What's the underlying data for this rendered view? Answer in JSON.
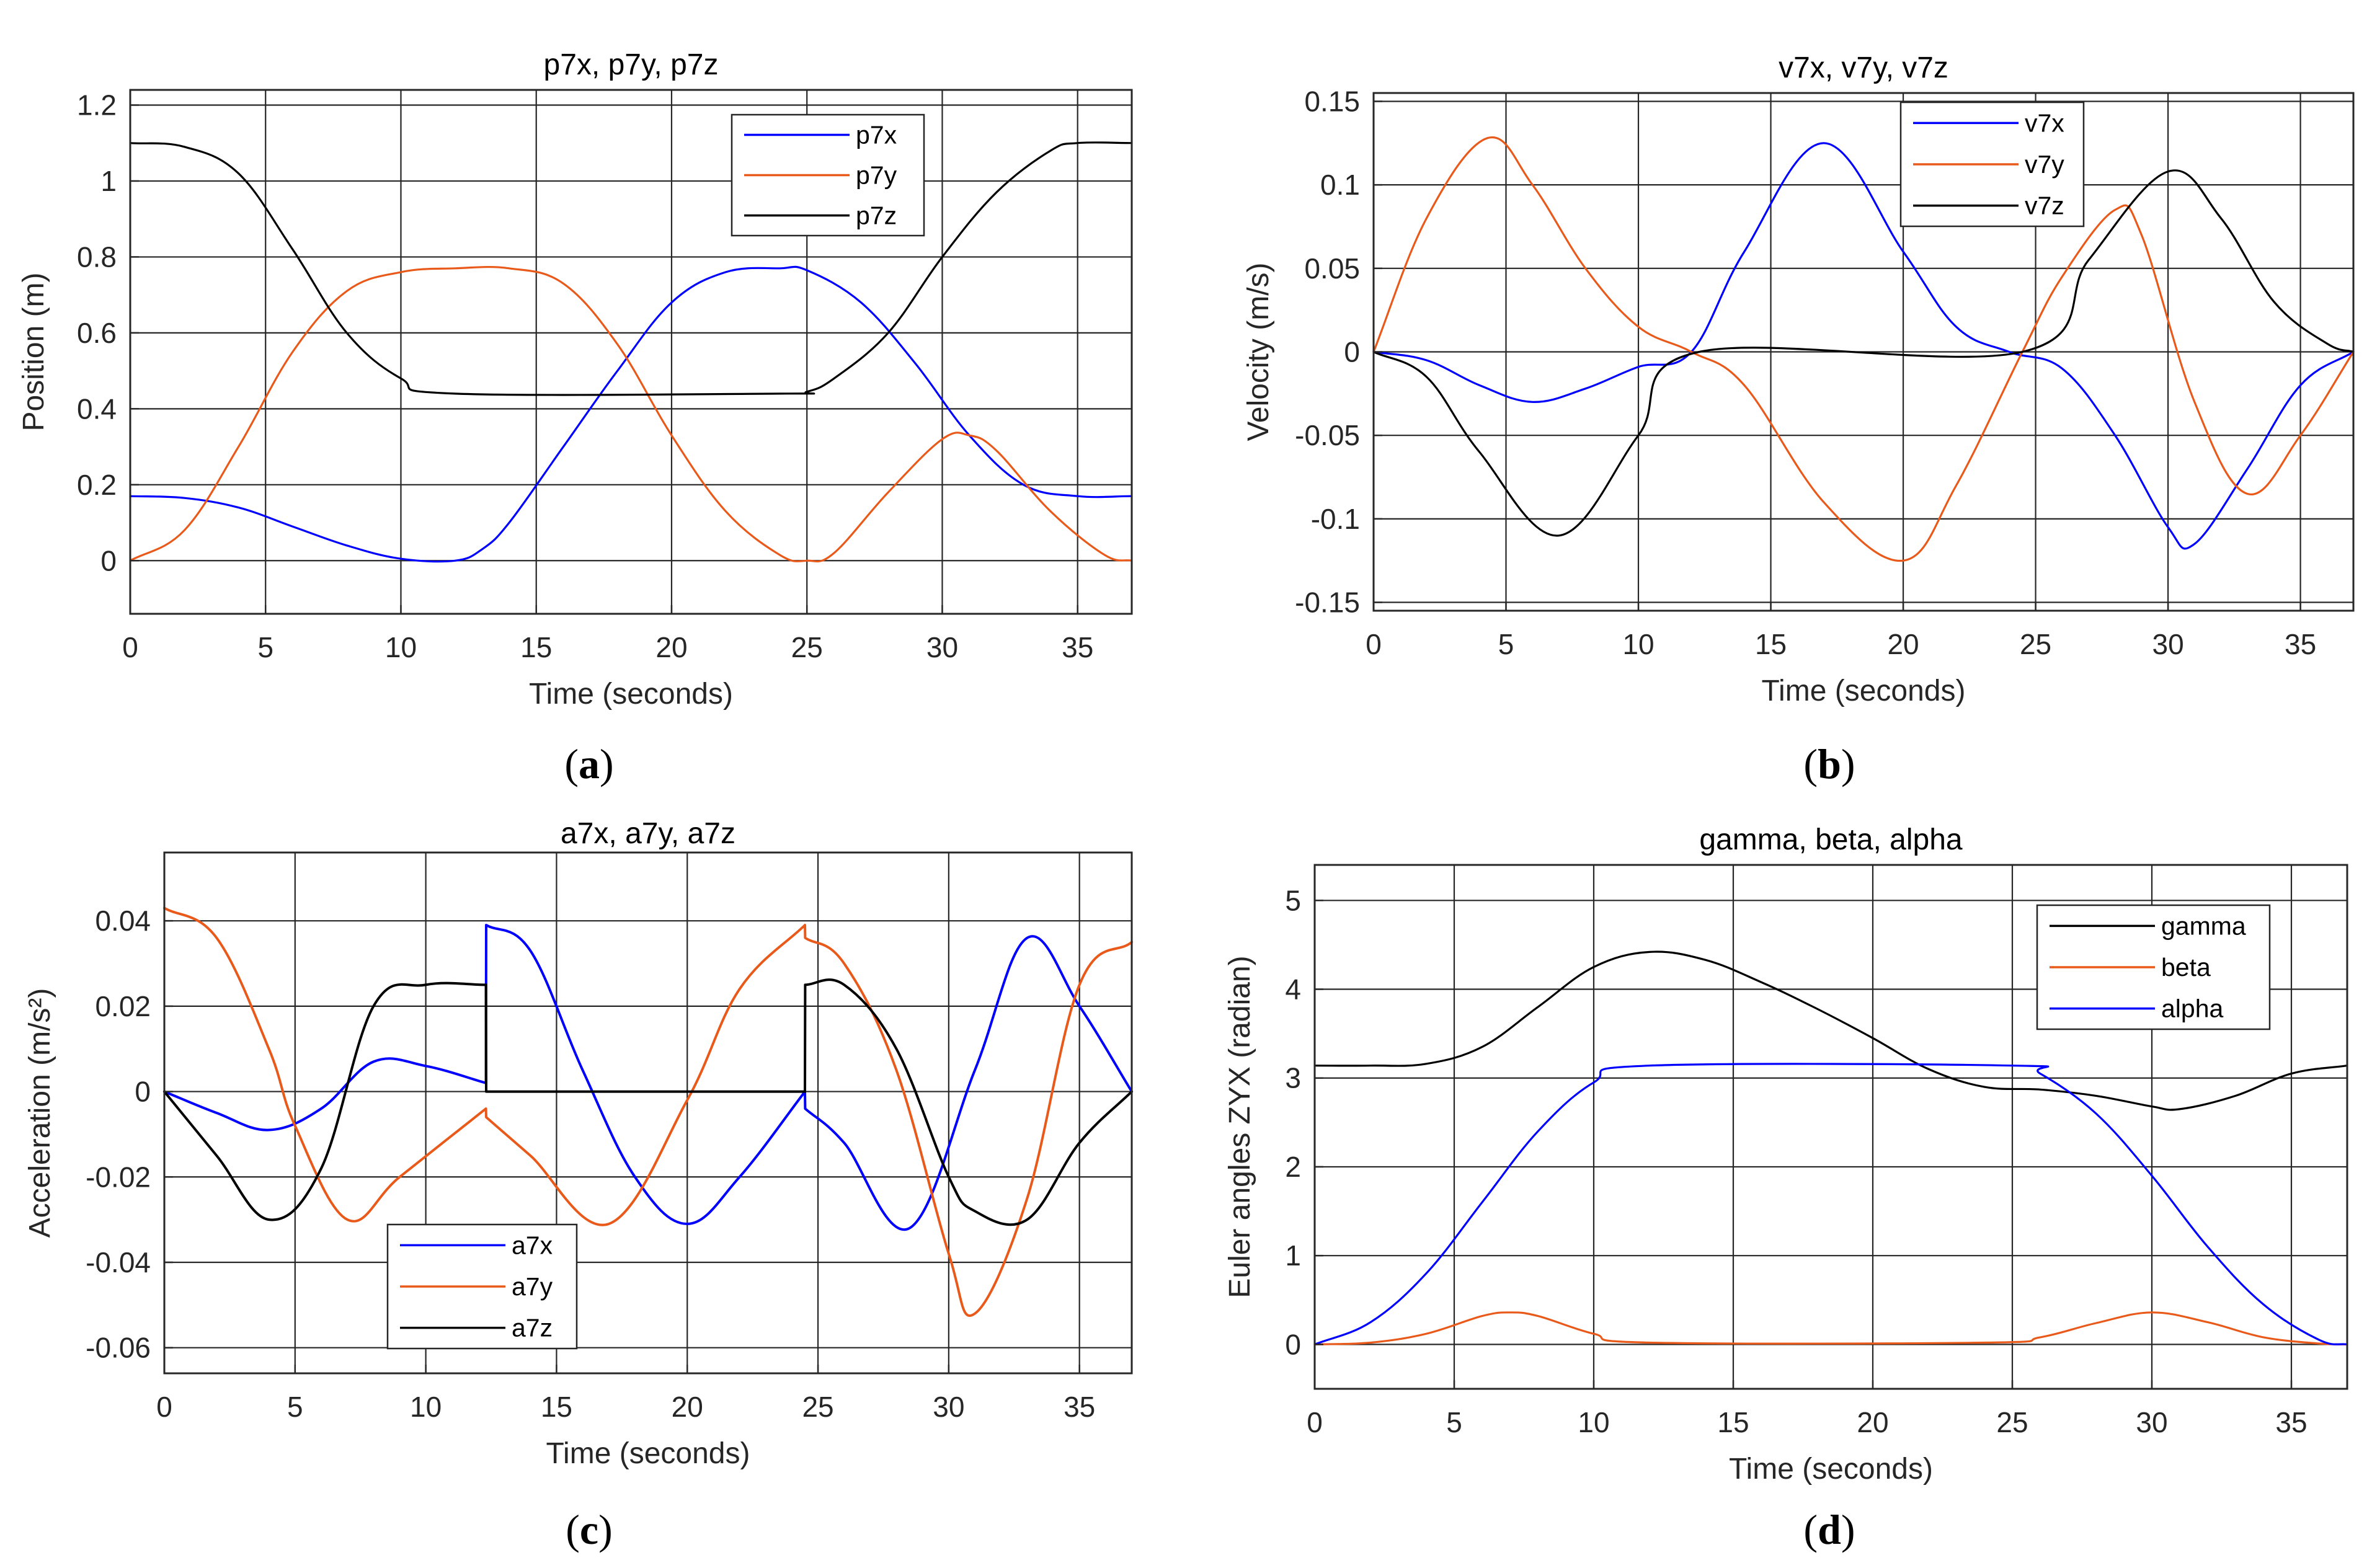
{
  "chart_data": [
    {
      "id": "a",
      "type": "line",
      "title": "p7x, p7y, p7z",
      "xlabel": "Time (seconds)",
      "ylabel": "Position (m)",
      "xlim": [
        0,
        37
      ],
      "ylim": [
        -0.14,
        1.24
      ],
      "xticks": [
        0,
        5,
        10,
        15,
        20,
        25,
        30,
        35
      ],
      "xtick_labels": [
        "0",
        "5",
        "10",
        "15",
        "20",
        "25",
        "30",
        "35"
      ],
      "yticks": [
        0,
        0.2,
        0.4,
        0.6,
        0.8,
        1,
        1.2
      ],
      "ytick_labels": [
        "0",
        "0.2",
        "0.4",
        "0.6",
        "0.8",
        "1",
        "1.2"
      ],
      "grid": true,
      "legend_position": "top-right",
      "caption": "a",
      "series": [
        {
          "name": "p7x",
          "color": "#0000ff",
          "x": [
            0,
            2,
            4,
            6,
            8,
            10,
            12,
            13,
            14,
            16,
            18,
            20,
            22,
            24,
            25,
            27,
            29,
            31,
            33,
            35,
            37
          ],
          "y": [
            0.17,
            0.165,
            0.14,
            0.09,
            0.04,
            0.005,
            0,
            0.03,
            0.1,
            0.3,
            0.5,
            0.68,
            0.76,
            0.77,
            0.765,
            0.68,
            0.52,
            0.33,
            0.2,
            0.17,
            0.17
          ]
        },
        {
          "name": "p7y",
          "color": "#e8591a",
          "x": [
            0,
            2,
            4,
            6,
            8,
            10,
            12,
            14,
            16,
            18,
            20,
            22,
            24,
            25,
            26,
            28,
            30,
            31,
            32,
            34,
            36,
            37
          ],
          "y": [
            0,
            0.08,
            0.3,
            0.55,
            0.71,
            0.76,
            0.77,
            0.77,
            0.73,
            0.57,
            0.33,
            0.13,
            0.015,
            0,
            0.02,
            0.18,
            0.32,
            0.33,
            0.29,
            0.13,
            0.015,
            0
          ]
        },
        {
          "name": "p7z",
          "color": "#000000",
          "x": [
            0,
            2,
            4,
            6,
            8,
            10,
            12,
            24,
            25,
            26,
            28,
            30,
            32,
            34,
            35,
            37
          ],
          "y": [
            1.1,
            1.09,
            1.02,
            0.82,
            0.6,
            0.48,
            0.44,
            0.44,
            0.445,
            0.48,
            0.6,
            0.8,
            0.97,
            1.08,
            1.1,
            1.1
          ]
        }
      ]
    },
    {
      "id": "b",
      "type": "line",
      "title": "v7x, v7y, v7z",
      "xlabel": "Time (seconds)",
      "ylabel": "Velocity (m/s)",
      "xlim": [
        0,
        37
      ],
      "ylim": [
        -0.155,
        0.155
      ],
      "xticks": [
        0,
        5,
        10,
        15,
        20,
        25,
        30,
        35
      ],
      "xtick_labels": [
        "0",
        "5",
        "10",
        "15",
        "20",
        "25",
        "30",
        "35"
      ],
      "yticks": [
        -0.15,
        -0.1,
        -0.05,
        0,
        0.05,
        0.1,
        0.15
      ],
      "ytick_labels": [
        "-0.15",
        "-0.1",
        "-0.05",
        "0",
        "0.05",
        "0.1",
        "0.15"
      ],
      "grid": true,
      "legend_position": "top",
      "caption": "b",
      "series": [
        {
          "name": "v7x",
          "color": "#0000ff",
          "x": [
            0,
            2,
            4,
            6,
            8,
            10,
            12,
            14,
            17,
            20,
            22,
            24,
            26,
            28,
            30,
            31,
            33,
            35,
            37
          ],
          "y": [
            0,
            -0.005,
            -0.02,
            -0.03,
            -0.022,
            -0.009,
            0,
            0.06,
            0.125,
            0.06,
            0.015,
            0,
            -0.01,
            -0.05,
            -0.105,
            -0.115,
            -0.07,
            -0.02,
            0
          ]
        },
        {
          "name": "v7y",
          "color": "#e8591a",
          "x": [
            0,
            2,
            4.3,
            6,
            8,
            10,
            12,
            14,
            17,
            20,
            22,
            24.5,
            26,
            28,
            29,
            31,
            33,
            35,
            37
          ],
          "y": [
            0,
            0.08,
            0.128,
            0.1,
            0.05,
            0.015,
            0,
            -0.02,
            -0.09,
            -0.125,
            -0.08,
            0,
            0.045,
            0.085,
            0.07,
            -0.03,
            -0.085,
            -0.05,
            0
          ]
        },
        {
          "name": "v7z",
          "color": "#000000",
          "x": [
            0,
            2,
            4,
            7,
            10,
            12.3,
            24.5,
            27,
            30,
            32,
            34,
            36,
            37
          ],
          "y": [
            0,
            -0.015,
            -0.06,
            -0.11,
            -0.05,
            0,
            0,
            0.055,
            0.108,
            0.08,
            0.03,
            0.005,
            0
          ]
        }
      ]
    },
    {
      "id": "c",
      "type": "line",
      "title": "a7x, a7y, a7z",
      "xlabel": "Time (seconds)",
      "ylabel": "Acceleration (m/s²)",
      "xlim": [
        0,
        37
      ],
      "ylim": [
        -0.066,
        0.056
      ],
      "xticks": [
        0,
        5,
        10,
        15,
        20,
        25,
        30,
        35
      ],
      "xtick_labels": [
        "0",
        "5",
        "10",
        "15",
        "20",
        "25",
        "30",
        "35"
      ],
      "yticks": [
        -0.06,
        -0.04,
        -0.02,
        0,
        0.02,
        0.04
      ],
      "ytick_labels": [
        "-0.06",
        "-0.04",
        "-0.02",
        "0",
        "0.02",
        "0.04"
      ],
      "grid": true,
      "legend_position": "bottom-left",
      "caption": "c",
      "series": [
        {
          "name": "a7x",
          "color": "#0000ff",
          "x": [
            0,
            2,
            4,
            6,
            8,
            10,
            12.3,
            12.31,
            14,
            16,
            18,
            20,
            22,
            24.5,
            24.51,
            26,
            28.5,
            31,
            33,
            35,
            37
          ],
          "y": [
            0,
            -0.005,
            -0.009,
            -0.004,
            0.007,
            0.006,
            0.002,
            0.039,
            0.033,
            0.005,
            -0.02,
            -0.031,
            -0.02,
            0,
            -0.004,
            -0.012,
            -0.032,
            0.005,
            0.036,
            0.02,
            0
          ]
        },
        {
          "name": "a7y",
          "color": "#e8591a",
          "x": [
            0,
            2,
            4,
            5,
            7,
            9,
            12.3,
            12.31,
            14,
            17,
            20,
            22,
            24.5,
            24.51,
            26,
            28,
            30,
            31,
            33,
            35,
            37
          ],
          "y": [
            0.043,
            0.036,
            0.01,
            -0.008,
            -0.03,
            -0.02,
            -0.004,
            -0.006,
            -0.015,
            -0.031,
            -0.002,
            0.024,
            0.039,
            0.036,
            0.03,
            0.005,
            -0.038,
            -0.052,
            -0.025,
            0.025,
            0.035
          ]
        },
        {
          "name": "a7z",
          "color": "#000000",
          "x": [
            0,
            2,
            4,
            6,
            8,
            10,
            12.3,
            12.31,
            24.5,
            24.51,
            26,
            28,
            30,
            31,
            33,
            35,
            37
          ],
          "y": [
            0,
            -0.015,
            -0.03,
            -0.018,
            0.02,
            0.025,
            0.025,
            0,
            0,
            0.025,
            0.025,
            0.01,
            -0.02,
            -0.028,
            -0.03,
            -0.012,
            0
          ]
        }
      ]
    },
    {
      "id": "d",
      "type": "line",
      "title": "gamma, beta, alpha",
      "xlabel": "Time (seconds)",
      "ylabel": "Euler angles ZYX (radian)",
      "xlim": [
        0,
        37
      ],
      "ylim": [
        -0.5,
        5.4
      ],
      "xticks": [
        0,
        5,
        10,
        15,
        20,
        25,
        30,
        35
      ],
      "xtick_labels": [
        "0",
        "5",
        "10",
        "15",
        "20",
        "25",
        "30",
        "35"
      ],
      "yticks": [
        0,
        1,
        2,
        3,
        4,
        5
      ],
      "ytick_labels": [
        "0",
        "1",
        "2",
        "3",
        "4",
        "5"
      ],
      "grid": true,
      "legend_position": "top-right",
      "caption": "d",
      "series": [
        {
          "name": "gamma",
          "color": "#000000",
          "x": [
            0,
            2,
            4,
            6,
            8,
            10,
            12,
            14,
            16,
            18,
            20,
            22,
            24,
            26,
            28,
            30,
            31,
            33,
            35,
            37
          ],
          "y": [
            3.14,
            3.14,
            3.16,
            3.35,
            3.8,
            4.25,
            4.42,
            4.33,
            4.08,
            3.78,
            3.45,
            3.1,
            2.9,
            2.87,
            2.8,
            2.68,
            2.65,
            2.8,
            3.05,
            3.14
          ]
        },
        {
          "name": "beta",
          "color": "#e8591a",
          "x": [
            0,
            2,
            4,
            6,
            7,
            8,
            10,
            12,
            24,
            26,
            28,
            30,
            32,
            34,
            36,
            37
          ],
          "y": [
            0,
            0.02,
            0.12,
            0.32,
            0.36,
            0.32,
            0.12,
            0.02,
            0.02,
            0.08,
            0.24,
            0.36,
            0.25,
            0.08,
            0.01,
            0
          ]
        },
        {
          "name": "alpha",
          "color": "#0000ff",
          "x": [
            0,
            2,
            4,
            6,
            8,
            10,
            12,
            25,
            26,
            28,
            30,
            32,
            34,
            36,
            37
          ],
          "y": [
            0,
            0.25,
            0.8,
            1.6,
            2.4,
            2.95,
            3.14,
            3.14,
            3.05,
            2.6,
            1.9,
            1.1,
            0.45,
            0.05,
            0
          ]
        }
      ]
    }
  ]
}
